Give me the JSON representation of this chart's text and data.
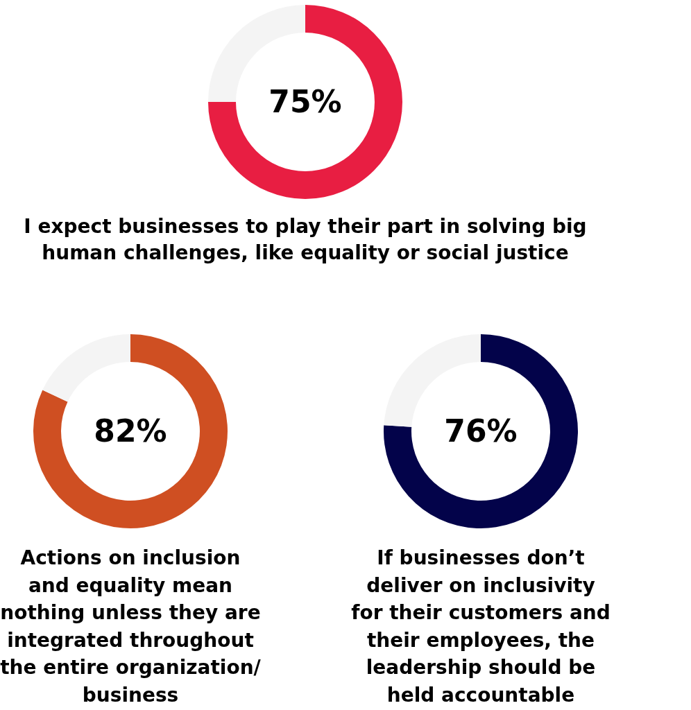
{
  "chart_data": [
    {
      "type": "donut",
      "title": "I expect businesses to play their part in solving big\nhuman challenges, like equality or social justice",
      "categories": [
        null,
        null
      ],
      "values": [
        75,
        25
      ],
      "colors": [
        "#e81e42",
        "#f4f4f4"
      ],
      "value_labels": [
        "75%",
        null
      ]
    },
    {
      "type": "donut",
      "title": "Actions on inclusion\nand equality mean\nnothing unless they are\nintegrated throughout\nthe entire organization/\nbusiness",
      "categories": [
        null,
        null
      ],
      "values": [
        82,
        18
      ],
      "colors": [
        "#cf4f22",
        "#f4f4f4"
      ],
      "value_labels": [
        "82%",
        null
      ]
    },
    {
      "type": "donut",
      "title": "If businesses don’t\ndeliver on inclusivity\nfor their customers and\ntheir employees, the\nleadership should be\nheld accountable",
      "categories": [
        null,
        null
      ],
      "values": [
        76,
        24
      ],
      "colors": [
        "#03034a",
        "#f4f4f4"
      ],
      "value_labels": [
        "76%",
        null
      ]
    }
  ]
}
